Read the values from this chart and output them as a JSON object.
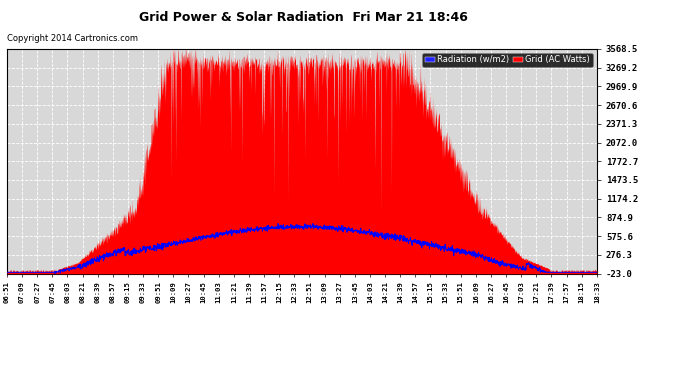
{
  "title": "Grid Power & Solar Radiation  Fri Mar 21 18:46",
  "copyright": "Copyright 2014 Cartronics.com",
  "legend_radiation": "Radiation (w/m2)",
  "legend_grid": "Grid (AC Watts)",
  "yticks": [
    3568.5,
    3269.2,
    2969.9,
    2670.6,
    2371.3,
    2072.0,
    1772.7,
    1473.5,
    1174.2,
    874.9,
    575.6,
    276.3,
    -23.0
  ],
  "ymin": -23.0,
  "ymax": 3568.5,
  "background_color": "#ffffff",
  "plot_bg_color": "#d8d8d8",
  "grid_color": "#ffffff",
  "red_fill_color": "#ff0000",
  "blue_line_color": "#0000ff",
  "xtick_labels": [
    "06:51",
    "07:09",
    "07:27",
    "07:45",
    "08:03",
    "08:21",
    "08:39",
    "08:57",
    "09:15",
    "09:33",
    "09:51",
    "10:09",
    "10:27",
    "10:45",
    "11:03",
    "11:21",
    "11:39",
    "11:57",
    "12:15",
    "12:33",
    "12:51",
    "13:09",
    "13:27",
    "13:45",
    "14:03",
    "14:21",
    "14:39",
    "14:57",
    "15:15",
    "15:33",
    "15:51",
    "16:09",
    "16:27",
    "16:45",
    "17:03",
    "17:21",
    "17:39",
    "17:57",
    "18:15",
    "18:33"
  ],
  "n_points": 2000
}
